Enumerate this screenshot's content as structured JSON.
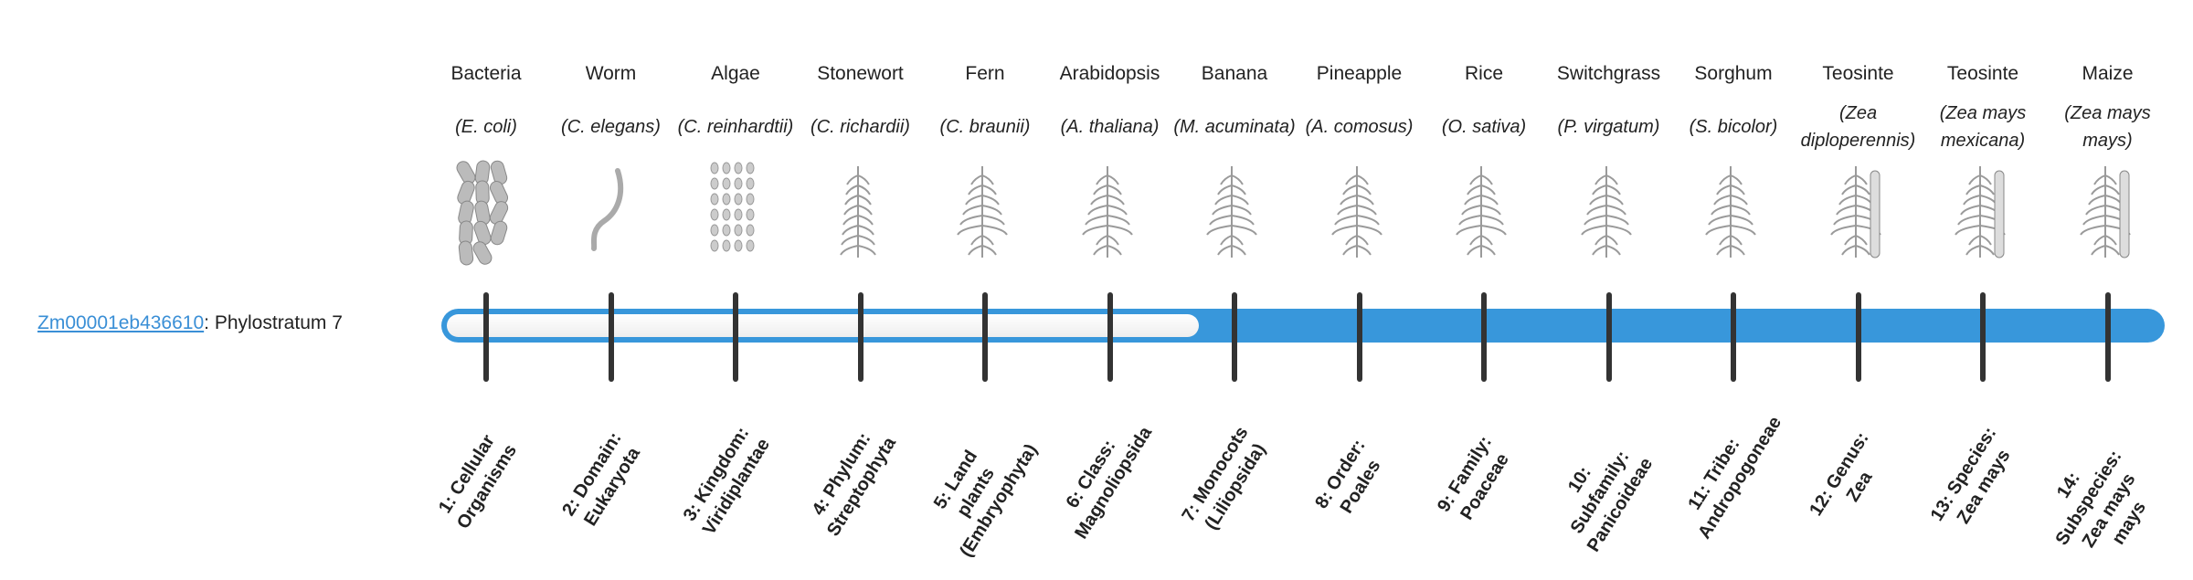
{
  "gene": {
    "id": "Zm00001eb436610",
    "suffix": ": Phylostratum 7"
  },
  "phylostratum": 7,
  "colors": {
    "bar": "#3897db",
    "tick": "#333333",
    "link": "#3a8fd6"
  },
  "strata": [
    {
      "organism": "Bacteria",
      "latin": "(E. coli)",
      "icon": "bacteria-icon",
      "rank": "1: Cellular Organisms"
    },
    {
      "organism": "Worm",
      "latin": "(C. elegans)",
      "icon": "worm-icon",
      "rank": "2: Domain: Eukaryota"
    },
    {
      "organism": "Algae",
      "latin": "(C. reinhardtii)",
      "icon": "algae-icon",
      "rank": "3: Kingdom: Viridiplantae"
    },
    {
      "organism": "Stonewort",
      "latin": "(C. richardii)",
      "icon": "stonewort-icon",
      "rank": "4: Phylum: Streptophyta"
    },
    {
      "organism": "Fern",
      "latin": "(C. braunii)",
      "icon": "fern-icon",
      "rank": "5: Land plants (Embryophyta)"
    },
    {
      "organism": "Arabidopsis",
      "latin": "(A. thaliana)",
      "icon": "arabidopsis-icon",
      "rank": "6: Class: Magnoliopsida"
    },
    {
      "organism": "Banana",
      "latin": "(M. acuminata)",
      "icon": "banana-icon",
      "rank": "7: Monocots (Liliopsida)"
    },
    {
      "organism": "Pineapple",
      "latin": "(A. comosus)",
      "icon": "pineapple-icon",
      "rank": "8: Order: Poales"
    },
    {
      "organism": "Rice",
      "latin": "(O. sativa)",
      "icon": "rice-icon",
      "rank": "9: Family: Poaceae"
    },
    {
      "organism": "Switchgrass",
      "latin": "(P. virgatum)",
      "icon": "switchgrass-icon",
      "rank": "10: Subfamily: Panicoideae"
    },
    {
      "organism": "Sorghum",
      "latin": "(S. bicolor)",
      "icon": "sorghum-icon",
      "rank": "11: Tribe: Andropogoneae"
    },
    {
      "organism": "Teosinte",
      "latin": "(Zea diploperennis)",
      "icon": "teosinte-icon",
      "rank": "12: Genus: Zea"
    },
    {
      "organism": "Teosinte",
      "latin": "(Zea mays mexicana)",
      "icon": "teosinte-mexicana-icon",
      "rank": "13: Species: Zea mays"
    },
    {
      "organism": "Maize",
      "latin": "(Zea mays mays)",
      "icon": "maize-icon",
      "rank": "14: Subspecies: Zea mays mays"
    }
  ]
}
